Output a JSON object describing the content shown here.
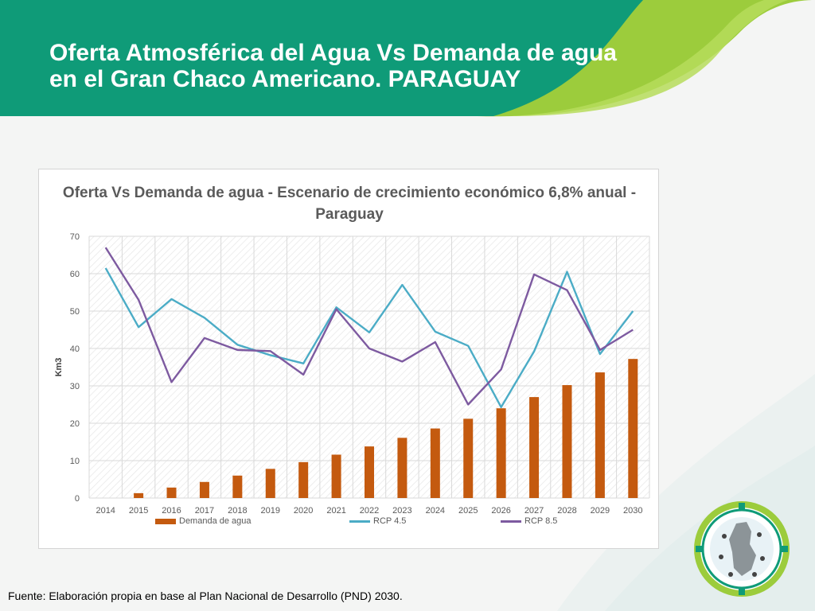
{
  "slide": {
    "title": "Oferta Atmosférica del Agua Vs Demanda de agua en el Gran Chaco Americano. PARAGUAY",
    "source": "Fuente: Elaboración propia en base al Plan Nacional de Desarrollo (PND) 2030."
  },
  "colors": {
    "header": "#0f9b78",
    "accent_green": "#9ccc3c",
    "bar": "#c45a0f",
    "rcp45": "#4bacc6",
    "rcp85": "#7d5aa0"
  },
  "logo": {
    "icon": "gran-chaco-logo-icon"
  },
  "chart_data": {
    "type": "bar",
    "title": "Oferta Vs Demanda de agua - Escenario de crecimiento económico 6,8% anual - Paraguay",
    "ylabel": "Km3",
    "xlabel": "",
    "ylim": [
      0,
      70
    ],
    "yticks": [
      0,
      10,
      20,
      30,
      40,
      50,
      60,
      70
    ],
    "grid": true,
    "legend_position": "bottom",
    "categories": [
      "2014",
      "2015",
      "2016",
      "2017",
      "2018",
      "2019",
      "2020",
      "2021",
      "2022",
      "2023",
      "2024",
      "2025",
      "2026",
      "2027",
      "2028",
      "2029",
      "2030"
    ],
    "series": [
      {
        "name": "Demanda de agua",
        "type": "bar",
        "values": [
          0,
          1.3,
          2.8,
          4.3,
          6.0,
          7.8,
          9.6,
          11.6,
          13.8,
          16.1,
          18.6,
          21.2,
          24.0,
          27.0,
          30.2,
          33.6,
          37.2
        ]
      },
      {
        "name": "RCP 4.5",
        "type": "line",
        "values": [
          61.5,
          45.7,
          53.2,
          48.2,
          41.0,
          38.2,
          36.0,
          51.0,
          44.3,
          57.0,
          44.5,
          40.7,
          24.3,
          39.2,
          60.5,
          38.5,
          50.0
        ]
      },
      {
        "name": "RCP 8.5",
        "type": "line",
        "values": [
          67.0,
          53.0,
          31.0,
          42.8,
          39.6,
          39.3,
          33.0,
          50.5,
          40.0,
          36.5,
          41.7,
          25.0,
          34.4,
          59.8,
          55.6,
          39.6,
          45.0
        ]
      }
    ]
  }
}
